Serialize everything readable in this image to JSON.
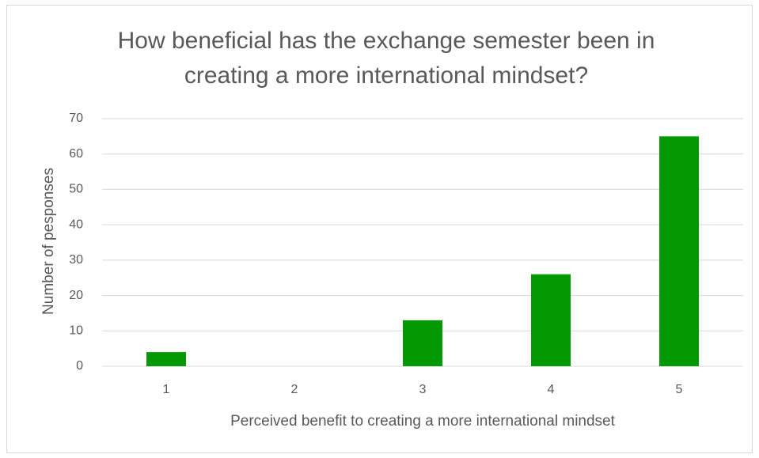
{
  "chart_data": {
    "type": "bar",
    "title": "How beneficial has the exchange semester been in creating a more international mindset?",
    "x_label": "Perceived benefit to creating a more international mindset",
    "y_label": "Number of pesponses",
    "categories": [
      "1",
      "2",
      "3",
      "4",
      "5"
    ],
    "values": [
      4,
      0,
      13,
      26,
      65
    ],
    "color": "#009900",
    "ylim": [
      0,
      70
    ],
    "yticks": [
      0,
      10,
      20,
      30,
      40,
      50,
      60,
      70
    ],
    "grid": true
  }
}
